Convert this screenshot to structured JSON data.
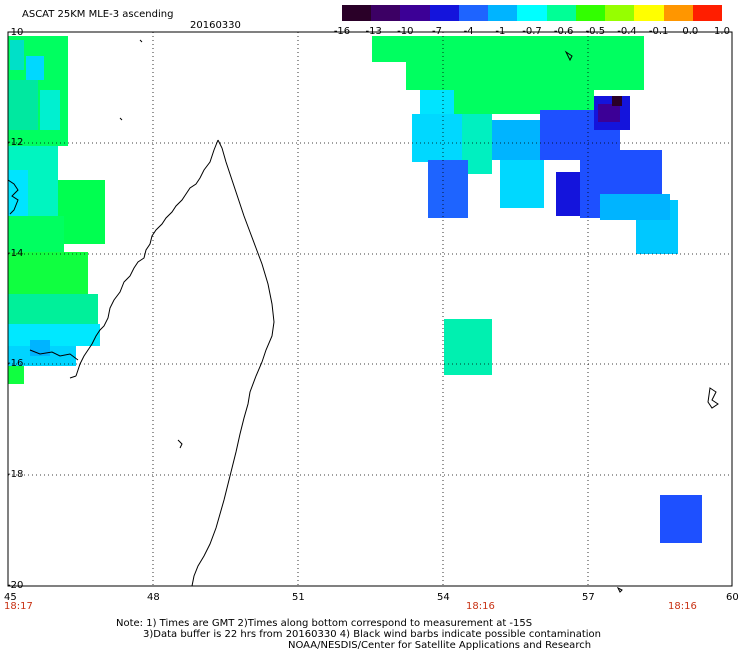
{
  "header": {
    "title": "ASCAT 25KM MLE-3 ascending",
    "date": "20160330"
  },
  "colorbar": {
    "labels": [
      "-16",
      "-13",
      "-10",
      "-7",
      "-4",
      "-1",
      "-0.7",
      "-0.6",
      "-0.5",
      "-0.4",
      "-0.1",
      "0.0",
      "1.0"
    ],
    "colors": [
      "#2a0028",
      "#3c0064",
      "#3c0096",
      "#1414dc",
      "#1e64ff",
      "#00b4ff",
      "#00ffff",
      "#00ff96",
      "#32ff00",
      "#96ff00",
      "#ffff00",
      "#ff9600",
      "#ff1e00"
    ]
  },
  "axes": {
    "lat_labels": [
      "-10",
      "-12",
      "-14",
      "-16",
      "-18",
      "-20"
    ],
    "lon_labels": [
      "45",
      "48",
      "51",
      "54",
      "57",
      "60"
    ],
    "time_labels": [
      "18:17",
      "18:16",
      "18:16"
    ]
  },
  "notes": {
    "line1": "Note: 1) Times are GMT 2)Times along bottom correspond to measurement at -15S",
    "line2": "3)Data buffer is 22 hrs from 20160330 4) Black wind barbs indicate possible contamination",
    "line3": "NOAA/NESDIS/Center for Satellite Applications and Research"
  }
}
